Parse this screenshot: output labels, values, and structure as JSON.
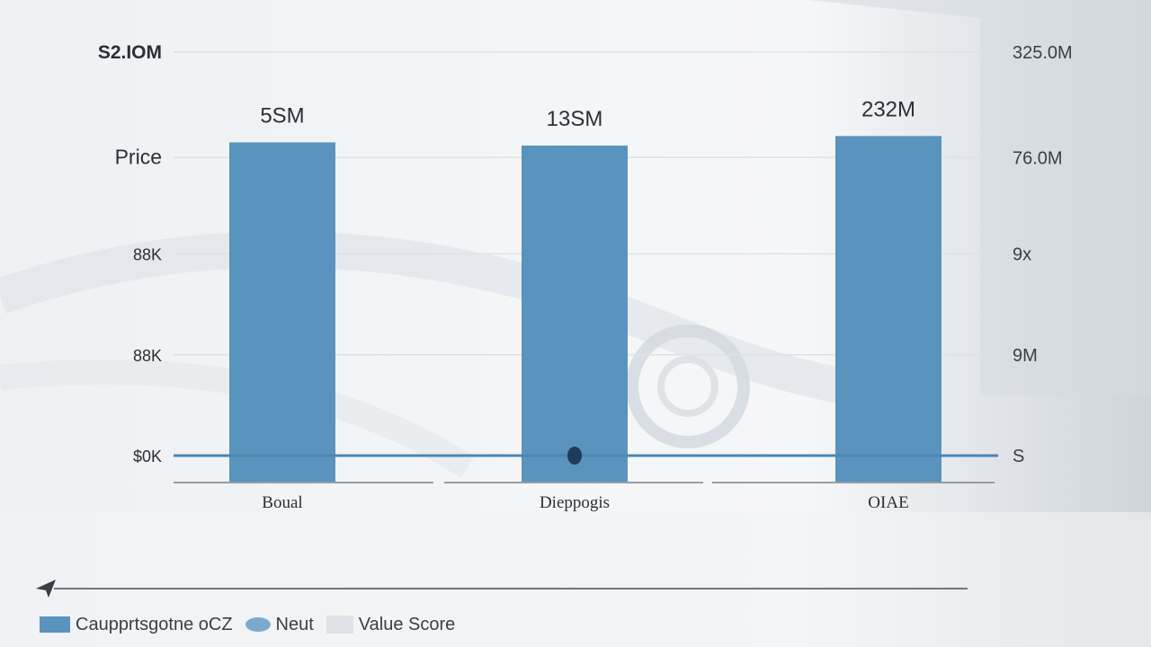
{
  "chart_data": {
    "type": "bar",
    "categories": [
      "Boual",
      "Dieppogis",
      "OIAE"
    ],
    "values": [
      1.0,
      0.99,
      1.02
    ],
    "bar_labels": [
      "5SM",
      "13SM",
      "232M"
    ],
    "left_axis_ticks": [
      "$0K",
      "88K",
      "88K",
      "Price",
      "S2.IOM"
    ],
    "right_axis_ticks": [
      "S",
      "9M",
      "9x",
      "76.0M",
      "325.0M"
    ],
    "ylim": [
      0,
      1.27
    ],
    "grid": true,
    "reference_line": true,
    "legend_position": "bottom-left",
    "colors": {
      "bar": "#5a93bd",
      "reference": "#4b86b4",
      "marker": "#1f3b57"
    }
  },
  "legend": {
    "items": [
      {
        "label": "Caupprtsgotne oCZ",
        "swatch": "rect",
        "color": "#5a93bd"
      },
      {
        "label": "Neut",
        "swatch": "ellipse",
        "color": "#7aa9cc"
      },
      {
        "label": "Value Score",
        "swatch": "rect-light",
        "color": "#dfe3e7"
      }
    ]
  },
  "icons": {
    "nav": "send-arrow-icon"
  }
}
